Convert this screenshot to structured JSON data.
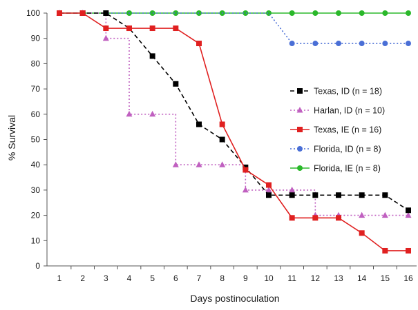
{
  "chart_data": {
    "type": "line",
    "title": "",
    "xlabel": "Days postinoculation",
    "ylabel": "% Survival",
    "xlim": [
      1,
      16
    ],
    "ylim": [
      0,
      100
    ],
    "x_ticks": [
      1,
      2,
      3,
      4,
      5,
      6,
      7,
      8,
      9,
      10,
      11,
      12,
      13,
      14,
      15,
      16
    ],
    "y_ticks": [
      0,
      10,
      20,
      30,
      40,
      50,
      60,
      70,
      80,
      90,
      100
    ],
    "grid": false,
    "legend_position": "right",
    "series": [
      {
        "name": "Texas, ID (n = 18)",
        "color": "#000000",
        "marker": "square",
        "line": "dashed",
        "x": [
          1,
          2,
          3,
          4,
          5,
          6,
          7,
          8,
          9,
          10,
          11,
          12,
          13,
          14,
          15,
          16
        ],
        "y": [
          100,
          100,
          100,
          94,
          83,
          72,
          56,
          50,
          39,
          28,
          28,
          28,
          28,
          28,
          28,
          22
        ]
      },
      {
        "name": "Harlan, ID (n = 10)",
        "color": "#c060c0",
        "marker": "triangle",
        "line": "dotted-step",
        "x": [
          1,
          2,
          3,
          4,
          5,
          6,
          7,
          8,
          9,
          10,
          11,
          12,
          13,
          14,
          15,
          16
        ],
        "y": [
          100,
          100,
          90,
          60,
          60,
          40,
          40,
          40,
          30,
          30,
          30,
          20,
          20,
          20,
          20,
          20
        ]
      },
      {
        "name": "Texas, IE (n = 16)",
        "color": "#e02020",
        "marker": "square",
        "line": "solid",
        "x": [
          1,
          2,
          3,
          4,
          5,
          6,
          7,
          8,
          9,
          10,
          11,
          12,
          13,
          14,
          15,
          16
        ],
        "y": [
          100,
          100,
          94,
          94,
          94,
          94,
          88,
          56,
          38,
          32,
          19,
          19,
          19,
          13,
          6,
          6
        ]
      },
      {
        "name": "Florida, ID (n = 8)",
        "color": "#4a6fd6",
        "marker": "circle",
        "line": "dotted",
        "x": [
          1,
          2,
          3,
          4,
          5,
          6,
          7,
          8,
          9,
          10,
          11,
          12,
          13,
          14,
          15,
          16
        ],
        "y": [
          100,
          100,
          100,
          100,
          100,
          100,
          100,
          100,
          100,
          100,
          88,
          88,
          88,
          88,
          88,
          88
        ],
        "visible_markers_from_x": 11
      },
      {
        "name": "Florida, IE (n = 8)",
        "color": "#2ab82a",
        "marker": "circle",
        "line": "solid",
        "x": [
          1,
          2,
          3,
          4,
          5,
          6,
          7,
          8,
          9,
          10,
          11,
          12,
          13,
          14,
          15,
          16
        ],
        "y": [
          100,
          100,
          100,
          100,
          100,
          100,
          100,
          100,
          100,
          100,
          100,
          100,
          100,
          100,
          100,
          100
        ]
      }
    ]
  }
}
